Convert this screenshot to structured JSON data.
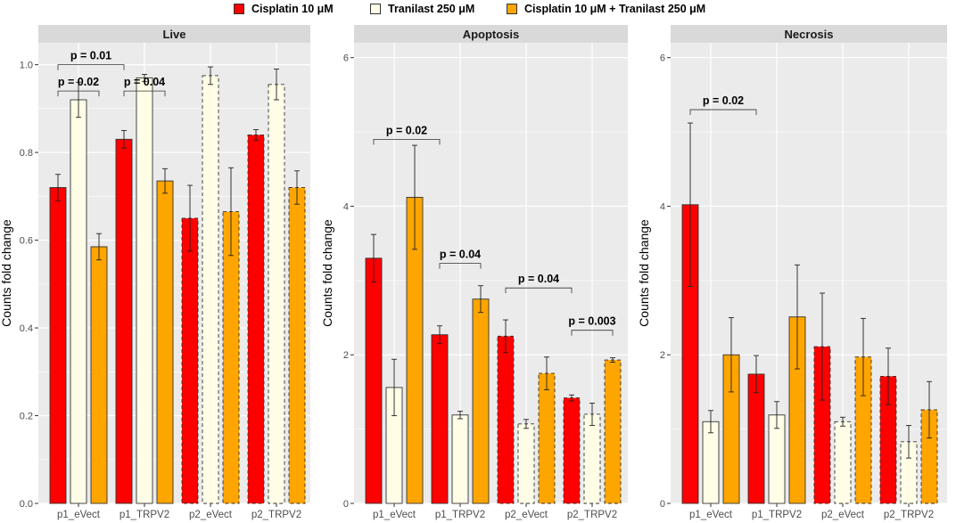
{
  "legend": [
    {
      "label": "Cisplatin 10 μM",
      "color": "#ff0000"
    },
    {
      "label": "Tranilast 250 μM",
      "color": "#fffde6"
    },
    {
      "label": "Cisplatin 10 μM + Tranilast 250 μM",
      "color": "#ffa500"
    }
  ],
  "colors": {
    "panel_bg": "#ebebeb",
    "strip_bg": "#d9d9d9",
    "grid": "#ffffff",
    "bar_outline": "#333333"
  },
  "chart_data": [
    {
      "type": "bar",
      "title": "Live",
      "ylabel": "Counts fold change",
      "ylim": [
        0,
        1.05
      ],
      "yticks": [
        0.0,
        0.2,
        0.4,
        0.6,
        0.8,
        1.0
      ],
      "ytick_labels": [
        "0.0",
        "0.2",
        "0.4",
        "0.6",
        "0.8",
        "1.0"
      ],
      "categories": [
        "p1_eVect",
        "p1_TRPV2",
        "p2_eVect",
        "p2_TRPV2"
      ],
      "dashed_categories": [
        "p2_eVect",
        "p2_TRPV2"
      ],
      "series": [
        {
          "name": "Cisplatin 10 μM",
          "values": [
            0.72,
            0.83,
            0.65,
            0.84
          ],
          "errors": [
            0.03,
            0.02,
            0.075,
            0.012
          ]
        },
        {
          "name": "Tranilast 250 μM",
          "values": [
            0.92,
            0.97,
            0.975,
            0.955
          ],
          "errors": [
            0.04,
            0.008,
            0.02,
            0.035
          ]
        },
        {
          "name": "Cisplatin 10 μM + Tranilast 250 μM",
          "values": [
            0.585,
            0.735,
            0.665,
            0.72
          ],
          "errors": [
            0.03,
            0.028,
            0.1,
            0.038
          ]
        }
      ],
      "annotations": [
        {
          "text": "p = 0.01",
          "from": 0,
          "to": 1,
          "level": 1.0
        },
        {
          "text": "p = 0.02",
          "from": 0,
          "to": 0.4,
          "level": 0.94
        },
        {
          "text": "p = 0.04",
          "from": 1,
          "to": 1.4,
          "level": 0.94
        }
      ]
    },
    {
      "type": "bar",
      "title": "Apoptosis",
      "ylabel": "Counts fold change",
      "ylim": [
        0,
        6.2
      ],
      "yticks": [
        0,
        2,
        4,
        6
      ],
      "ytick_labels": [
        "0",
        "2",
        "4",
        "6"
      ],
      "categories": [
        "p1_eVect",
        "p1_TRPV2",
        "p2_eVect",
        "p2_TRPV2"
      ],
      "dashed_categories": [
        "p2_eVect",
        "p2_TRPV2"
      ],
      "series": [
        {
          "name": "Cisplatin 10 μM",
          "values": [
            3.3,
            2.27,
            2.25,
            1.42
          ],
          "errors": [
            0.32,
            0.12,
            0.22,
            0.04
          ]
        },
        {
          "name": "Tranilast 250 μM",
          "values": [
            1.56,
            1.19,
            1.07,
            1.2
          ],
          "errors": [
            0.38,
            0.05,
            0.06,
            0.15
          ]
        },
        {
          "name": "Cisplatin 10 μM + Tranilast 250 μM",
          "values": [
            4.12,
            2.75,
            1.75,
            1.93
          ],
          "errors": [
            0.7,
            0.18,
            0.22,
            0.03
          ]
        }
      ],
      "annotations": [
        {
          "text": "p = 0.02",
          "from": 0,
          "to": 1,
          "level": 4.9
        },
        {
          "text": "p = 0.04",
          "from": 1,
          "to": 1.4,
          "level": 3.23
        },
        {
          "text": "p = 0.04",
          "from": 2,
          "to": 3,
          "level": 2.9
        },
        {
          "text": "p = 0.003",
          "from": 3,
          "to": 3.4,
          "level": 2.33
        }
      ]
    },
    {
      "type": "bar",
      "title": "Necrosis",
      "ylabel": "Counts fold change",
      "ylim": [
        0,
        6.2
      ],
      "yticks": [
        0,
        2,
        4,
        6
      ],
      "ytick_labels": [
        "0",
        "2",
        "4",
        "6"
      ],
      "categories": [
        "p1_eVect",
        "p1_TRPV2",
        "p2_eVect",
        "p2_TRPV2"
      ],
      "dashed_categories": [
        "p2_eVect",
        "p2_TRPV2"
      ],
      "series": [
        {
          "name": "Cisplatin 10 μM",
          "values": [
            4.02,
            1.74,
            2.11,
            1.71
          ],
          "errors": [
            1.1,
            0.25,
            0.72,
            0.38
          ]
        },
        {
          "name": "Tranilast 250 μM",
          "values": [
            1.1,
            1.19,
            1.1,
            0.83
          ],
          "errors": [
            0.15,
            0.18,
            0.06,
            0.22
          ]
        },
        {
          "name": "Cisplatin 10 μM + Tranilast 250 μM",
          "values": [
            2.0,
            2.51,
            1.97,
            1.26
          ],
          "errors": [
            0.5,
            0.7,
            0.52,
            0.38
          ]
        }
      ],
      "annotations": [
        {
          "text": "p = 0.02",
          "from": 0,
          "to": 1,
          "level": 5.3
        }
      ]
    }
  ]
}
